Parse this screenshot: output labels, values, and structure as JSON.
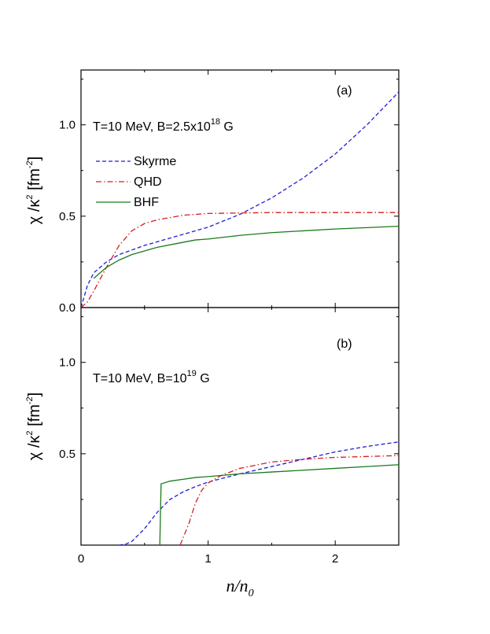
{
  "chart_data": [
    {
      "type": "line",
      "panel_tag": "(a)",
      "annotation": {
        "text": "T=10 MeV, B=2.5x10",
        "superscript": "18",
        "suffix": " G"
      },
      "ylabel": {
        "base": "χ /κ",
        "exp": "2",
        "unit_open": " [fm",
        "unit_exp": "-2",
        "unit_close": "]"
      },
      "xlim": [
        0,
        2.5
      ],
      "ylim": [
        0,
        1.3
      ],
      "yticks": [
        {
          "value": 0.0,
          "label": "0.0"
        },
        {
          "value": 0.5,
          "label": "0.5"
        },
        {
          "value": 1.0,
          "label": "1.0"
        }
      ],
      "legend": {
        "placement": "upper-left",
        "entries": [
          "Skyrme",
          "QHD",
          "BHF"
        ]
      },
      "series": [
        {
          "name": "Skyrme",
          "color": "#1f1fd6",
          "dash": "dashed",
          "points": [
            [
              0,
              0
            ],
            [
              0.05,
              0.12
            ],
            [
              0.1,
              0.19
            ],
            [
              0.2,
              0.25
            ],
            [
              0.3,
              0.29
            ],
            [
              0.5,
              0.34
            ],
            [
              0.75,
              0.39
            ],
            [
              1.0,
              0.44
            ],
            [
              1.25,
              0.51
            ],
            [
              1.5,
              0.6
            ],
            [
              1.75,
              0.71
            ],
            [
              2.0,
              0.84
            ],
            [
              2.25,
              1.0
            ],
            [
              2.5,
              1.18
            ]
          ]
        },
        {
          "name": "QHD",
          "color": "#d61f1f",
          "dash": "dashdot",
          "points": [
            [
              0,
              0
            ],
            [
              0.05,
              0.03
            ],
            [
              0.1,
              0.09
            ],
            [
              0.2,
              0.22
            ],
            [
              0.3,
              0.34
            ],
            [
              0.4,
              0.42
            ],
            [
              0.5,
              0.46
            ],
            [
              0.6,
              0.48
            ],
            [
              0.8,
              0.505
            ],
            [
              1.0,
              0.515
            ],
            [
              1.5,
              0.52
            ],
            [
              2.0,
              0.52
            ],
            [
              2.5,
              0.52
            ]
          ]
        },
        {
          "name": "BHF",
          "color": "#1a7a1a",
          "dash": "solid",
          "points": [
            [
              0.1,
              0.16
            ],
            [
              0.15,
              0.19
            ],
            [
              0.2,
              0.22
            ],
            [
              0.3,
              0.26
            ],
            [
              0.4,
              0.29
            ],
            [
              0.5,
              0.31
            ],
            [
              0.6,
              0.33
            ],
            [
              0.75,
              0.35
            ],
            [
              0.9,
              0.37
            ],
            [
              1.0,
              0.375
            ],
            [
              1.25,
              0.395
            ],
            [
              1.5,
              0.41
            ],
            [
              2.0,
              0.43
            ],
            [
              2.5,
              0.445
            ]
          ]
        }
      ]
    },
    {
      "type": "line",
      "panel_tag": "(b)",
      "annotation": {
        "text": "T=10 MeV, B=10",
        "superscript": "19",
        "suffix": " G"
      },
      "ylabel": {
        "base": "χ /κ",
        "exp": "2",
        "unit_open": " [fm",
        "unit_exp": "-2",
        "unit_close": "]"
      },
      "xlabel": {
        "base": "n/n",
        "sub": "0"
      },
      "xlim": [
        0,
        2.5
      ],
      "ylim": [
        0,
        1.3
      ],
      "xticks": [
        {
          "value": 0,
          "label": "0"
        },
        {
          "value": 1,
          "label": "1"
        },
        {
          "value": 2,
          "label": "2"
        }
      ],
      "yticks": [
        {
          "value": 0.5,
          "label": "0.5"
        },
        {
          "value": 1.0,
          "label": "1.0"
        }
      ],
      "series": [
        {
          "name": "Skyrme",
          "color": "#1f1fd6",
          "dash": "dashed",
          "points": [
            [
              0.3,
              0
            ],
            [
              0.35,
              0.005
            ],
            [
              0.4,
              0.02
            ],
            [
              0.5,
              0.09
            ],
            [
              0.6,
              0.18
            ],
            [
              0.7,
              0.25
            ],
            [
              0.8,
              0.29
            ],
            [
              0.9,
              0.32
            ],
            [
              1.0,
              0.345
            ],
            [
              1.25,
              0.39
            ],
            [
              1.5,
              0.43
            ],
            [
              1.75,
              0.47
            ],
            [
              2.0,
              0.51
            ],
            [
              2.25,
              0.54
            ],
            [
              2.5,
              0.565
            ]
          ]
        },
        {
          "name": "QHD",
          "color": "#d61f1f",
          "dash": "dashdot",
          "points": [
            [
              0.78,
              0
            ],
            [
              0.85,
              0.12
            ],
            [
              0.9,
              0.23
            ],
            [
              0.95,
              0.3
            ],
            [
              1.0,
              0.34
            ],
            [
              1.1,
              0.38
            ],
            [
              1.25,
              0.42
            ],
            [
              1.5,
              0.455
            ],
            [
              1.75,
              0.47
            ],
            [
              2.0,
              0.48
            ],
            [
              2.25,
              0.485
            ],
            [
              2.5,
              0.49
            ]
          ]
        },
        {
          "name": "BHF",
          "color": "#1a7a1a",
          "dash": "solid",
          "points": [
            [
              0.62,
              0
            ],
            [
              0.63,
              0.335
            ],
            [
              0.7,
              0.35
            ],
            [
              0.8,
              0.36
            ],
            [
              0.9,
              0.37
            ],
            [
              1.0,
              0.375
            ],
            [
              1.25,
              0.39
            ],
            [
              1.5,
              0.4
            ],
            [
              1.75,
              0.41
            ],
            [
              2.0,
              0.42
            ],
            [
              2.25,
              0.43
            ],
            [
              2.5,
              0.44
            ]
          ]
        }
      ]
    }
  ]
}
